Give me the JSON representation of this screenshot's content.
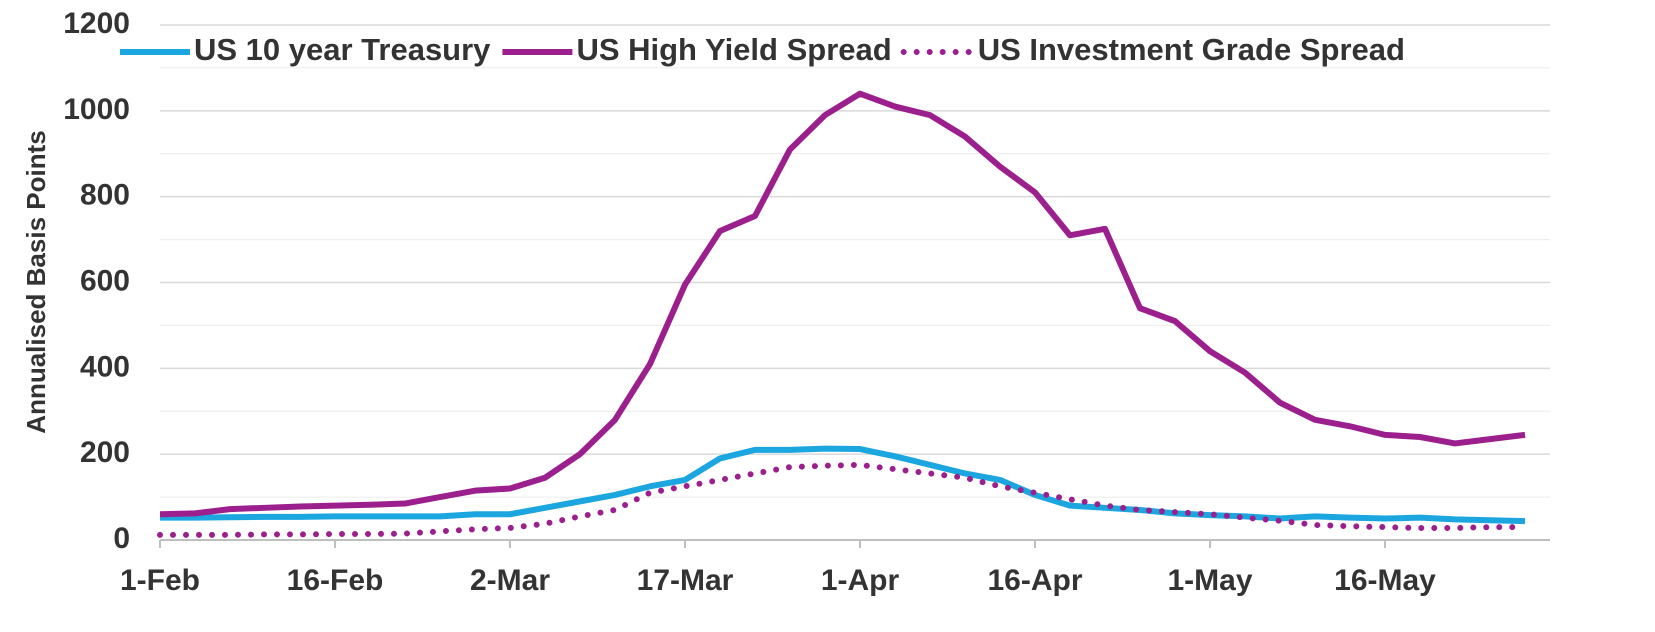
{
  "chart_data": {
    "type": "line",
    "y_label": "Annualised Basis Points",
    "categories": [
      "1-Feb",
      null,
      null,
      null,
      null,
      "16-Feb",
      null,
      null,
      null,
      null,
      "2-Mar",
      null,
      null,
      null,
      null,
      "17-Mar",
      null,
      null,
      null,
      null,
      "1-Apr",
      null,
      null,
      null,
      null,
      "16-Apr",
      null,
      null,
      null,
      null,
      "1-May",
      null,
      null,
      null,
      null,
      "16-May",
      null,
      null,
      null,
      null
    ],
    "series": [
      {
        "name": "US 10 year Treasury",
        "color": "#1ba6df",
        "line_style": "solid",
        "values": [
          52,
          52,
          53,
          54,
          54,
          55,
          55,
          55,
          55,
          60,
          60,
          75,
          90,
          105,
          125,
          140,
          190,
          210,
          210,
          213,
          212,
          195,
          175,
          155,
          140,
          105,
          80,
          75,
          70,
          62,
          58,
          55,
          50,
          55,
          52,
          50,
          52,
          48,
          46,
          44
        ]
      },
      {
        "name": "US High Yield Spread",
        "color": "#9c1f8e",
        "line_style": "solid",
        "values": [
          60,
          62,
          72,
          75,
          78,
          80,
          82,
          85,
          100,
          115,
          120,
          145,
          200,
          280,
          410,
          595,
          720,
          755,
          910,
          990,
          1040,
          1010,
          990,
          940,
          870,
          810,
          710,
          725,
          540,
          510,
          440,
          390,
          320,
          280,
          265,
          245,
          240,
          225,
          235,
          245
        ]
      },
      {
        "name": "US Investment Grade Spread",
        "color": "#9c1f8e",
        "line_style": "dotted",
        "values": [
          12,
          12,
          12,
          13,
          13,
          14,
          14,
          15,
          20,
          25,
          28,
          38,
          55,
          70,
          110,
          125,
          140,
          155,
          170,
          173,
          175,
          165,
          155,
          145,
          125,
          110,
          95,
          80,
          70,
          65,
          60,
          52,
          45,
          35,
          32,
          30,
          28,
          28,
          30,
          30
        ]
      }
    ],
    "ylim": [
      0,
      1200
    ],
    "yticks": [
      0,
      200,
      400,
      600,
      800,
      1000,
      1200
    ],
    "minor_yticks": [
      100,
      300,
      500,
      700,
      900,
      1100
    ],
    "grid": true,
    "legend": "top"
  }
}
